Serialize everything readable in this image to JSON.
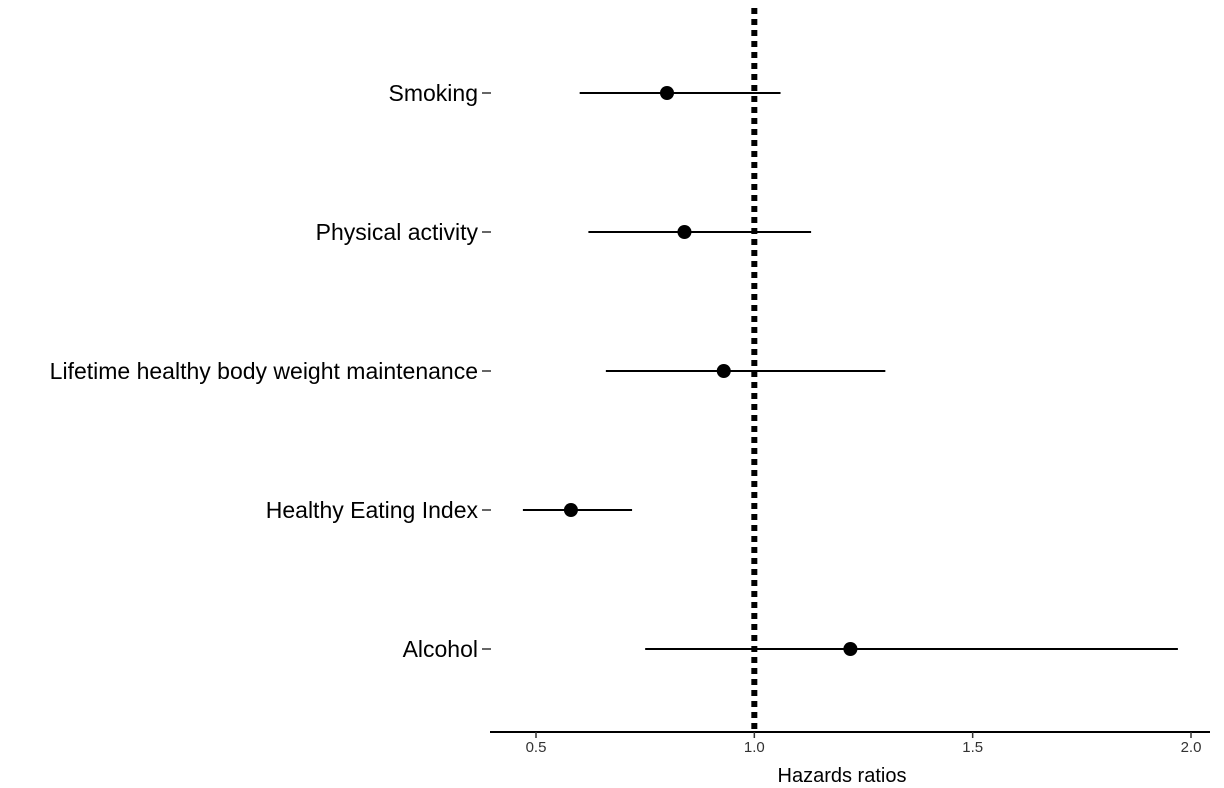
{
  "chart_data": {
    "type": "forest",
    "xlabel": "Hazards ratios",
    "ylabel": "",
    "xlim": [
      0.4,
      2.05
    ],
    "x_ticks": [
      0.5,
      1.0,
      1.5,
      2.0
    ],
    "x_tick_labels": [
      "0.5",
      "1.0",
      "1.5",
      "2.0"
    ],
    "reference_line": 1.0,
    "reference_line_style": "dotted",
    "grid": false,
    "point_color": "#000000",
    "line_color": "#000000",
    "categories": [
      "Smoking",
      "Physical activity",
      "Lifetime healthy body weight maintenance",
      "Healthy Eating Index",
      "Alcohol"
    ],
    "estimates": [
      0.8,
      0.84,
      0.93,
      0.58,
      1.22
    ],
    "ci_lower": [
      0.6,
      0.62,
      0.66,
      0.47,
      0.75
    ],
    "ci_upper": [
      1.06,
      1.13,
      1.3,
      0.72,
      1.97
    ]
  }
}
